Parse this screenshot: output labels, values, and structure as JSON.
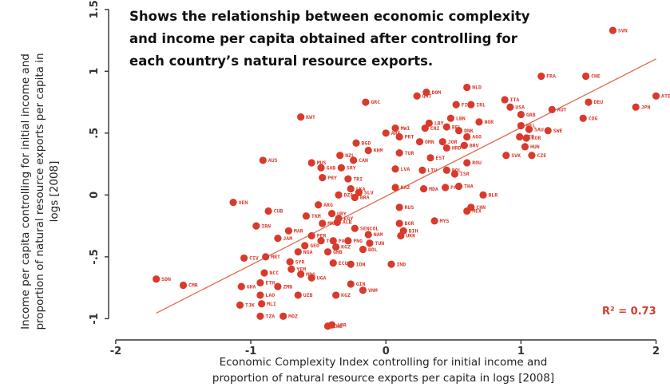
{
  "chart_data": {
    "type": "scatter",
    "annotation_lines": [
      "Shows the relationship between economic complexity",
      "and income per capita obtained after controlling for",
      "each country’s natural resource exports."
    ],
    "xlabel_lines": [
      "Economic Complexity Index controlling for initial income and",
      "proportion of natural resource exports per capita in logs [2008]"
    ],
    "ylabel_lines": [
      "Income per capita controlling for initial income and",
      "proportion of natural resource exports per capita in",
      "logs [2008]"
    ],
    "xlim": [
      -2.1,
      2.05
    ],
    "ylim": [
      -1.12,
      1.55
    ],
    "xticks": [
      -2,
      -1,
      0,
      1,
      2
    ],
    "xtick_labels": [
      "-2",
      "-1",
      "0",
      "1",
      "2"
    ],
    "yticks": [
      -1,
      -0.5,
      0,
      0.5,
      1,
      1.5
    ],
    "ytick_labels": [
      "-1",
      "-.5",
      "0",
      ".5",
      "1",
      "1.5"
    ],
    "grid": false,
    "r2_label": "R² = 0.73",
    "trend_line": {
      "x": [
        -1.7,
        2.0
      ],
      "y": [
        -0.955,
        1.1
      ]
    },
    "colors": {
      "points": "#d93a2b",
      "trend": "#e06a50",
      "axis": "#333333"
    },
    "points": [
      {
        "label": "SVN",
        "x": 1.68,
        "y": 1.33
      },
      {
        "label": "FRA",
        "x": 1.15,
        "y": 0.96
      },
      {
        "label": "CHE",
        "x": 1.48,
        "y": 0.96
      },
      {
        "label": "ATE",
        "x": 2.0,
        "y": 0.8
      },
      {
        "label": "JPN",
        "x": 1.85,
        "y": 0.71
      },
      {
        "label": "DEU",
        "x": 1.5,
        "y": 0.75
      },
      {
        "label": "COG",
        "x": 1.46,
        "y": 0.62
      },
      {
        "label": "AUT",
        "x": 1.23,
        "y": 0.69
      },
      {
        "label": "NLD",
        "x": 0.6,
        "y": 0.87
      },
      {
        "label": "DOM",
        "x": 0.3,
        "y": 0.83
      },
      {
        "label": "QAT",
        "x": 0.23,
        "y": 0.8
      },
      {
        "label": "FIN",
        "x": 0.52,
        "y": 0.73
      },
      {
        "label": "IRL",
        "x": 0.63,
        "y": 0.73
      },
      {
        "label": "ITA",
        "x": 0.88,
        "y": 0.77
      },
      {
        "label": "USA",
        "x": 0.92,
        "y": 0.71
      },
      {
        "label": "GRB",
        "x": 1.0,
        "y": 0.65
      },
      {
        "label": "NOR",
        "x": 0.69,
        "y": 0.59
      },
      {
        "label": "LBN",
        "x": 0.48,
        "y": 0.62
      },
      {
        "label": "BEL",
        "x": 1.0,
        "y": 0.56
      },
      {
        "label": "SAU",
        "x": 1.06,
        "y": 0.53
      },
      {
        "label": "SWE",
        "x": 1.2,
        "y": 0.52
      },
      {
        "label": "SEP",
        "x": 0.99,
        "y": 0.47
      },
      {
        "label": "KOR",
        "x": 1.04,
        "y": 0.46
      },
      {
        "label": "HUN",
        "x": 1.03,
        "y": 0.39
      },
      {
        "label": "SVK",
        "x": 0.89,
        "y": 0.32
      },
      {
        "label": "CZE",
        "x": 1.08,
        "y": 0.32
      },
      {
        "label": "GRC",
        "x": -0.15,
        "y": 0.75
      },
      {
        "label": "KWT",
        "x": -0.63,
        "y": 0.63
      },
      {
        "label": "MWI",
        "x": 0.07,
        "y": 0.54
      },
      {
        "label": "LBY",
        "x": 0.32,
        "y": 0.58
      },
      {
        "label": "CRI",
        "x": 0.29,
        "y": 0.54
      },
      {
        "label": "BEL",
        "x": 0.45,
        "y": 0.55
      },
      {
        "label": "DNK",
        "x": 0.54,
        "y": 0.52
      },
      {
        "label": "ARE",
        "x": 0.0,
        "y": 0.5
      },
      {
        "label": "PRT",
        "x": 0.1,
        "y": 0.47
      },
      {
        "label": "OMN",
        "x": 0.25,
        "y": 0.43
      },
      {
        "label": "JOR",
        "x": 0.42,
        "y": 0.43
      },
      {
        "label": "AGO",
        "x": 0.6,
        "y": 0.47
      },
      {
        "label": "BGD",
        "x": -0.22,
        "y": 0.42
      },
      {
        "label": "TUR",
        "x": 0.1,
        "y": 0.34
      },
      {
        "label": "HRD",
        "x": 0.45,
        "y": 0.38
      },
      {
        "label": "BRV",
        "x": 0.58,
        "y": 0.4
      },
      {
        "label": "KHM",
        "x": -0.13,
        "y": 0.36
      },
      {
        "label": "EST",
        "x": 0.33,
        "y": 0.3
      },
      {
        "label": "NZL",
        "x": -0.34,
        "y": 0.32
      },
      {
        "label": "CAN",
        "x": -0.24,
        "y": 0.28
      },
      {
        "label": "ROU",
        "x": 0.6,
        "y": 0.26
      },
      {
        "label": "AUS",
        "x": -0.91,
        "y": 0.28
      },
      {
        "label": "MUS",
        "x": -0.55,
        "y": 0.26
      },
      {
        "label": "GAB",
        "x": -0.48,
        "y": 0.22
      },
      {
        "label": "SRY",
        "x": -0.33,
        "y": 0.22
      },
      {
        "label": "LVA",
        "x": 0.07,
        "y": 0.21
      },
      {
        "label": "LTU",
        "x": 0.27,
        "y": 0.2
      },
      {
        "label": "POL",
        "x": 0.45,
        "y": 0.2
      },
      {
        "label": "ISR",
        "x": 0.51,
        "y": 0.17
      },
      {
        "label": "PRY",
        "x": -0.47,
        "y": 0.14
      },
      {
        "label": "TRI",
        "x": -0.28,
        "y": 0.13
      },
      {
        "label": "KAZ",
        "x": 0.07,
        "y": 0.06
      },
      {
        "label": "MDA",
        "x": 0.28,
        "y": 0.05
      },
      {
        "label": "PAN",
        "x": 0.44,
        "y": 0.06
      },
      {
        "label": "THA",
        "x": 0.54,
        "y": 0.07
      },
      {
        "label": "LKA",
        "x": -0.26,
        "y": 0.05
      },
      {
        "label": "SLV",
        "x": -0.2,
        "y": 0.02
      },
      {
        "label": "BLR",
        "x": 0.72,
        "y": 0.0
      },
      {
        "label": "DZA",
        "x": -0.35,
        "y": 0.0
      },
      {
        "label": "BRA",
        "x": -0.23,
        "y": -0.02
      },
      {
        "label": "VEN",
        "x": -1.13,
        "y": -0.06
      },
      {
        "label": "ARG",
        "x": -0.5,
        "y": -0.08
      },
      {
        "label": "CHN",
        "x": 0.63,
        "y": -0.1
      },
      {
        "label": "RUS",
        "x": 0.1,
        "y": -0.1
      },
      {
        "label": "CUB",
        "x": -0.87,
        "y": -0.13
      },
      {
        "label": "TKM",
        "x": -0.59,
        "y": -0.17
      },
      {
        "label": "URY",
        "x": -0.4,
        "y": -0.15
      },
      {
        "label": "MEX",
        "x": 0.6,
        "y": -0.13
      },
      {
        "label": "EGY",
        "x": -0.35,
        "y": -0.19
      },
      {
        "label": "IRN",
        "x": -0.96,
        "y": -0.25
      },
      {
        "label": "MKD",
        "x": -0.47,
        "y": -0.23
      },
      {
        "label": "ALB",
        "x": -0.36,
        "y": -0.22
      },
      {
        "label": "MYS",
        "x": 0.36,
        "y": -0.21
      },
      {
        "label": "BGR",
        "x": 0.1,
        "y": -0.23
      },
      {
        "label": "MAR",
        "x": -0.72,
        "y": -0.29
      },
      {
        "label": "SENCOL",
        "x": -0.23,
        "y": -0.27
      },
      {
        "label": "BIH",
        "x": 0.13,
        "y": -0.29
      },
      {
        "label": "JAM",
        "x": -0.8,
        "y": -0.35
      },
      {
        "label": "PER",
        "x": -0.55,
        "y": -0.33
      },
      {
        "label": "TON",
        "x": -0.48,
        "y": -0.37
      },
      {
        "label": "NAM",
        "x": -0.13,
        "y": -0.32
      },
      {
        "label": "UKR",
        "x": 0.11,
        "y": -0.33
      },
      {
        "label": "GEO",
        "x": -0.6,
        "y": -0.41
      },
      {
        "label": "PAK",
        "x": -0.39,
        "y": -0.37
      },
      {
        "label": "KGZ",
        "x": -0.37,
        "y": -0.42
      },
      {
        "label": "PNG",
        "x": -0.28,
        "y": -0.37
      },
      {
        "label": "TUN",
        "x": -0.12,
        "y": -0.39
      },
      {
        "label": "NGA",
        "x": -0.65,
        "y": -0.46
      },
      {
        "label": "GHB",
        "x": -0.43,
        "y": -0.46
      },
      {
        "label": "BOL",
        "x": -0.17,
        "y": -0.44
      },
      {
        "label": "MRT",
        "x": -0.89,
        "y": -0.5
      },
      {
        "label": "CIV",
        "x": -1.05,
        "y": -0.51
      },
      {
        "label": "SYR",
        "x": -0.71,
        "y": -0.54
      },
      {
        "label": "ECU",
        "x": -0.39,
        "y": -0.55
      },
      {
        "label": "IDN",
        "x": -0.26,
        "y": -0.56
      },
      {
        "label": "IND",
        "x": 0.04,
        "y": -0.56
      },
      {
        "label": "NCC",
        "x": -0.9,
        "y": -0.63
      },
      {
        "label": "YEM",
        "x": -0.7,
        "y": -0.6
      },
      {
        "label": "UGA",
        "x": -0.55,
        "y": -0.67
      },
      {
        "label": "MDG",
        "x": -0.63,
        "y": -0.64
      },
      {
        "label": "ETH",
        "x": -0.93,
        "y": -0.71
      },
      {
        "label": "GHA",
        "x": -1.07,
        "y": -0.74
      },
      {
        "label": "ZMB",
        "x": -0.8,
        "y": -0.74
      },
      {
        "label": "CMR",
        "x": -1.5,
        "y": -0.73
      },
      {
        "label": "SDN",
        "x": -1.7,
        "y": -0.68
      },
      {
        "label": "GIN",
        "x": -0.26,
        "y": -0.72
      },
      {
        "label": "VNM",
        "x": -0.17,
        "y": -0.77
      },
      {
        "label": "LAO",
        "x": -0.93,
        "y": -0.81
      },
      {
        "label": "UZB",
        "x": -0.65,
        "y": -0.81
      },
      {
        "label": "KGZ",
        "x": -0.37,
        "y": -0.81
      },
      {
        "label": "MLI",
        "x": -0.92,
        "y": -0.88
      },
      {
        "label": "TJK",
        "x": -1.08,
        "y": -0.89
      },
      {
        "label": "TZA",
        "x": -0.93,
        "y": -0.98
      },
      {
        "label": "MOZ",
        "x": -0.76,
        "y": -0.98
      },
      {
        "label": "ZWE",
        "x": -0.43,
        "y": -1.06
      },
      {
        "label": "LBR",
        "x": -0.4,
        "y": -1.05
      }
    ]
  }
}
